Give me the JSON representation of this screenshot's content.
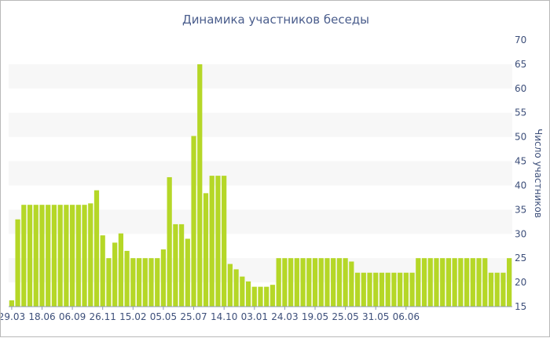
{
  "chart_data": {
    "type": "bar",
    "title": "Динамика участников беседы",
    "xlabel": "",
    "ylabel": "Число участников",
    "ylim": [
      15,
      70
    ],
    "y_ticks": [
      15,
      20,
      25,
      30,
      35,
      40,
      45,
      50,
      55,
      60,
      65,
      70
    ],
    "x_tick_labels": [
      "29.03",
      "18.06",
      "06.09",
      "26.11",
      "15.02",
      "05.05",
      "25.07",
      "14.10",
      "03.01",
      "24.03",
      "19.05",
      "25.05",
      "31.05",
      "06.06"
    ],
    "x_tick_label_bar_index": [
      0,
      5,
      10,
      15,
      20,
      25,
      30,
      35,
      40,
      45,
      50,
      55,
      60,
      65
    ],
    "grid": "horizontal bands",
    "y_axis_position": "right",
    "bar_color": "#b5d727",
    "values": [
      16.3,
      33,
      36,
      36,
      36,
      36,
      36,
      36,
      36,
      36,
      36,
      36,
      36,
      36.3,
      39,
      29.7,
      25,
      28.2,
      30.1,
      26.5,
      25,
      25,
      25,
      25,
      25,
      26.8,
      41.7,
      32,
      32,
      29,
      50.2,
      65,
      38.4,
      42,
      42,
      42,
      23.8,
      22.7,
      21.2,
      20.2,
      19.1,
      19.1,
      19.1,
      19.5,
      25,
      25,
      25,
      25,
      25,
      25,
      25,
      25,
      25,
      25,
      25,
      25,
      24.3,
      22,
      22,
      22,
      22,
      22,
      22,
      22,
      22,
      22,
      22,
      25,
      25,
      25,
      25,
      25,
      25,
      25,
      25,
      25,
      25,
      25,
      25,
      22,
      22,
      22,
      25
    ]
  }
}
